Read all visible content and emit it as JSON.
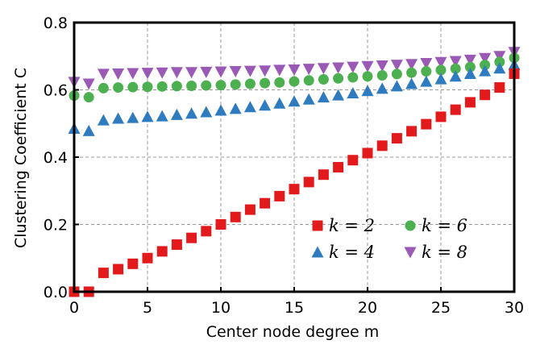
{
  "chart_data": {
    "type": "scatter",
    "xlabel": "Center node degree m",
    "ylabel": "Clustering Coefficient C",
    "xlim": [
      0,
      30
    ],
    "ylim": [
      0.0,
      0.8
    ],
    "xticks": [
      "0",
      "5",
      "10",
      "15",
      "20",
      "25",
      "30"
    ],
    "yticks": [
      "0.0",
      "0.2",
      "0.4",
      "0.6",
      "0.8"
    ],
    "grid": true,
    "legend_position": "lower-right",
    "x": [
      0,
      1,
      2,
      3,
      4,
      5,
      6,
      7,
      8,
      9,
      10,
      11,
      12,
      13,
      14,
      15,
      16,
      17,
      18,
      19,
      20,
      21,
      22,
      23,
      24,
      25,
      26,
      27,
      28,
      29,
      30
    ],
    "series": [
      {
        "name": "k = 2",
        "marker": "square",
        "color": "#e31a1c",
        "values": [
          0.0,
          0.0,
          0.056,
          0.067,
          0.083,
          0.1,
          0.12,
          0.14,
          0.16,
          0.18,
          0.2,
          0.222,
          0.244,
          0.263,
          0.284,
          0.305,
          0.326,
          0.348,
          0.37,
          0.391,
          0.412,
          0.434,
          0.456,
          0.477,
          0.498,
          0.52,
          0.541,
          0.563,
          0.585,
          0.607,
          0.648
        ]
      },
      {
        "name": "k = 4",
        "marker": "triangle-up",
        "color": "#2f7bbf",
        "values": [
          0.485,
          0.478,
          0.51,
          0.515,
          0.517,
          0.52,
          0.522,
          0.526,
          0.53,
          0.534,
          0.539,
          0.544,
          0.549,
          0.554,
          0.56,
          0.566,
          0.572,
          0.578,
          0.584,
          0.59,
          0.597,
          0.604,
          0.611,
          0.618,
          0.625,
          0.632,
          0.64,
          0.648,
          0.656,
          0.664,
          0.675
        ]
      },
      {
        "name": "k = 6",
        "marker": "circle",
        "color": "#4caf50",
        "values": [
          0.583,
          0.578,
          0.605,
          0.607,
          0.608,
          0.609,
          0.61,
          0.611,
          0.612,
          0.613,
          0.614,
          0.616,
          0.618,
          0.62,
          0.622,
          0.625,
          0.628,
          0.631,
          0.634,
          0.637,
          0.64,
          0.643,
          0.647,
          0.651,
          0.655,
          0.659,
          0.663,
          0.668,
          0.674,
          0.683,
          0.695
        ]
      },
      {
        "name": "k = 8",
        "marker": "triangle-down",
        "color": "#9b59b6",
        "values": [
          0.623,
          0.618,
          0.647,
          0.648,
          0.649,
          0.65,
          0.651,
          0.652,
          0.652,
          0.653,
          0.654,
          0.655,
          0.656,
          0.657,
          0.659,
          0.66,
          0.662,
          0.664,
          0.666,
          0.668,
          0.67,
          0.672,
          0.674,
          0.676,
          0.679,
          0.682,
          0.685,
          0.689,
          0.694,
          0.7,
          0.712
        ]
      }
    ]
  }
}
